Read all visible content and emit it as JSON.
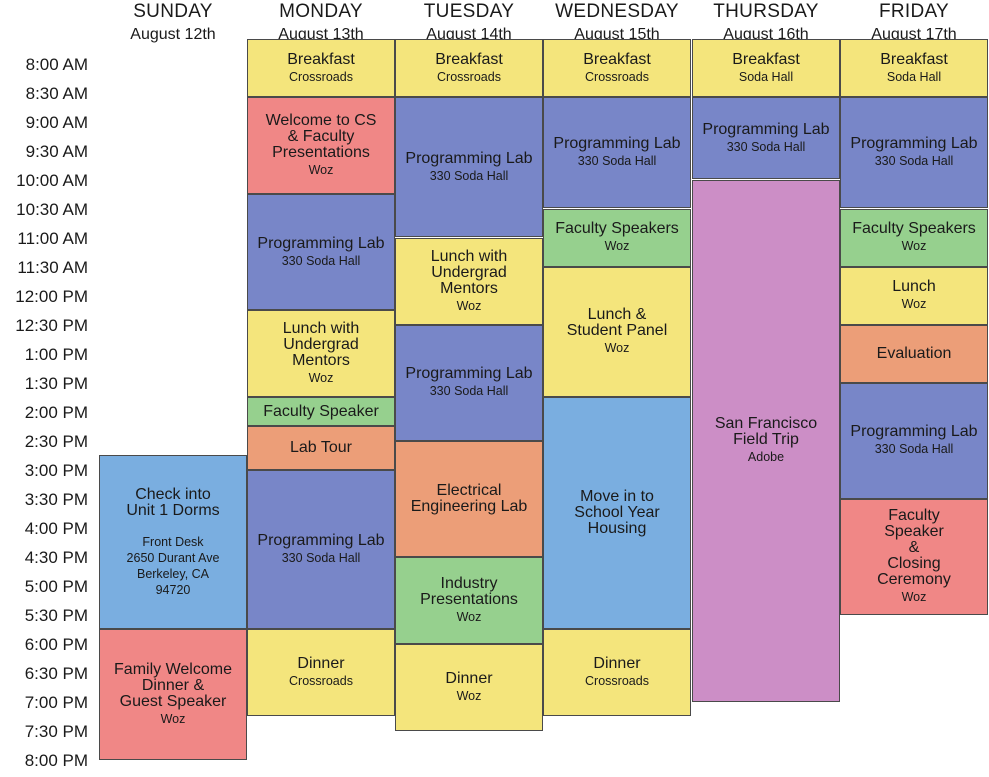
{
  "colors": {
    "meal": "#f4e57c",
    "lab": "#7886c8",
    "speaker": "#96d08e",
    "special": "#f08786",
    "orange": "#ec9e78",
    "housing": "#7aaee0",
    "trip": "#cc8ec6"
  },
  "times": [
    "8:00 AM",
    "8:30 AM",
    "9:00 AM",
    "9:30 AM",
    "10:00 AM",
    "10:30 AM",
    "11:00 AM",
    "11:30 AM",
    "12:00 PM",
    "12:30 PM",
    "1:00 PM",
    "1:30 PM",
    "2:00 PM",
    "2:30 PM",
    "3:00 PM",
    "3:30 PM",
    "4:00 PM",
    "4:30 PM",
    "5:00 PM",
    "5:30 PM",
    "6:00 PM",
    "6:30 PM",
    "7:00 PM",
    "7:30 PM",
    "8:00 PM"
  ],
  "days": [
    {
      "name": "SUNDAY",
      "date": "August 12th"
    },
    {
      "name": "MONDAY",
      "date": "August 13th"
    },
    {
      "name": "TUESDAY",
      "date": "August 14th"
    },
    {
      "name": "WEDNESDAY",
      "date": "August 15th"
    },
    {
      "name": "THURSDAY",
      "date": "August 16th"
    },
    {
      "name": "FRIDAY",
      "date": "August 17th"
    }
  ],
  "events": [
    {
      "day": 0,
      "start": "3:00 PM",
      "end": "6:00 PM",
      "color": "housing",
      "title": "Check into\nUnit 1 Dorms",
      "detail": "Front Desk\n2650 Durant Ave\nBerkeley, CA\n94720"
    },
    {
      "day": 0,
      "start": "6:00 PM",
      "end": "8:15 PM",
      "color": "special",
      "title": "Family Welcome\nDinner &\nGuest Speaker",
      "sub": "Woz"
    },
    {
      "day": 1,
      "start": "7:50 AM",
      "end": "8:50 AM",
      "color": "meal",
      "title": "Breakfast",
      "sub": "Crossroads"
    },
    {
      "day": 1,
      "start": "8:50 AM",
      "end": "10:30 AM",
      "color": "special",
      "title": "Welcome to CS\n& Faculty\nPresentations",
      "sub": "Woz"
    },
    {
      "day": 1,
      "start": "10:30 AM",
      "end": "12:30 PM",
      "color": "lab",
      "title": "Programming Lab",
      "sub": "330 Soda Hall"
    },
    {
      "day": 1,
      "start": "12:30 PM",
      "end": "2:00 PM",
      "color": "meal",
      "title": "Lunch with\nUndergrad\nMentors",
      "sub": "Woz"
    },
    {
      "day": 1,
      "start": "2:00 PM",
      "end": "2:30 PM",
      "color": "speaker",
      "title": "Faculty Speaker"
    },
    {
      "day": 1,
      "start": "2:30 PM",
      "end": "3:15 PM",
      "color": "orange",
      "title": "Lab Tour"
    },
    {
      "day": 1,
      "start": "3:15 PM",
      "end": "6:00 PM",
      "color": "lab",
      "title": "Programming Lab",
      "sub": "330 Soda Hall"
    },
    {
      "day": 1,
      "start": "6:00 PM",
      "end": "7:30 PM",
      "color": "meal",
      "title": "Dinner",
      "sub": "Crossroads"
    },
    {
      "day": 2,
      "start": "7:50 AM",
      "end": "8:50 AM",
      "color": "meal",
      "title": "Breakfast",
      "sub": "Crossroads"
    },
    {
      "day": 2,
      "start": "8:50 AM",
      "end": "11:15 AM",
      "color": "lab",
      "title": "Programming Lab",
      "sub": "330 Soda Hall"
    },
    {
      "day": 2,
      "start": "11:15 AM",
      "end": "12:45 PM",
      "color": "meal",
      "title": "Lunch with\nUndergrad\nMentors",
      "sub": "Woz"
    },
    {
      "day": 2,
      "start": "12:45 PM",
      "end": "2:45 PM",
      "color": "lab",
      "title": "Programming Lab",
      "sub": "330 Soda Hall"
    },
    {
      "day": 2,
      "start": "2:45 PM",
      "end": "4:45 PM",
      "color": "orange",
      "title": "Electrical\nEngineering Lab"
    },
    {
      "day": 2,
      "start": "4:45 PM",
      "end": "6:15 PM",
      "color": "speaker",
      "title": "Industry\nPresentations",
      "sub": "Woz"
    },
    {
      "day": 2,
      "start": "6:15 PM",
      "end": "7:45 PM",
      "color": "meal",
      "title": "Dinner",
      "sub": "Woz"
    },
    {
      "day": 3,
      "start": "7:50 AM",
      "end": "8:50 AM",
      "color": "meal",
      "title": "Breakfast",
      "sub": "Crossroads"
    },
    {
      "day": 3,
      "start": "8:50 AM",
      "end": "10:45 AM",
      "color": "lab",
      "title": "Programming Lab",
      "sub": "330 Soda Hall"
    },
    {
      "day": 3,
      "start": "10:45 AM",
      "end": "11:45 AM",
      "color": "speaker",
      "title": "Faculty Speakers",
      "sub": "Woz"
    },
    {
      "day": 3,
      "start": "11:45 AM",
      "end": "2:00 PM",
      "color": "meal",
      "title": "Lunch &\nStudent Panel",
      "sub": "Woz"
    },
    {
      "day": 3,
      "start": "2:00 PM",
      "end": "6:00 PM",
      "color": "housing",
      "title": "Move in to\nSchool Year\nHousing"
    },
    {
      "day": 3,
      "start": "6:00 PM",
      "end": "7:30 PM",
      "color": "meal",
      "title": "Dinner",
      "sub": "Crossroads"
    },
    {
      "day": 4,
      "start": "7:50 AM",
      "end": "8:50 AM",
      "color": "meal",
      "title": "Breakfast",
      "sub": "Soda Hall"
    },
    {
      "day": 4,
      "start": "8:50 AM",
      "end": "10:15 AM",
      "color": "lab",
      "title": "Programming Lab",
      "sub": "330 Soda Hall"
    },
    {
      "day": 4,
      "start": "10:15 AM",
      "end": "7:15 PM",
      "color": "trip",
      "title": "San Francisco\nField Trip",
      "sub": "Adobe"
    },
    {
      "day": 5,
      "start": "7:50 AM",
      "end": "8:50 AM",
      "color": "meal",
      "title": "Breakfast",
      "sub": "Soda Hall"
    },
    {
      "day": 5,
      "start": "8:50 AM",
      "end": "10:45 AM",
      "color": "lab",
      "title": "Programming Lab",
      "sub": "330 Soda Hall"
    },
    {
      "day": 5,
      "start": "10:45 AM",
      "end": "11:45 AM",
      "color": "speaker",
      "title": "Faculty Speakers",
      "sub": "Woz"
    },
    {
      "day": 5,
      "start": "11:45 AM",
      "end": "12:45 PM",
      "color": "meal",
      "title": "Lunch",
      "sub": "Woz"
    },
    {
      "day": 5,
      "start": "12:45 PM",
      "end": "1:45 PM",
      "color": "orange",
      "title": "Evaluation"
    },
    {
      "day": 5,
      "start": "1:45 PM",
      "end": "3:45 PM",
      "color": "lab",
      "title": "Programming Lab",
      "sub": "330 Soda Hall"
    },
    {
      "day": 5,
      "start": "3:45 PM",
      "end": "5:45 PM",
      "color": "special",
      "title": "Faculty\nSpeaker\n&\nClosing\nCeremony",
      "sub": "Woz"
    }
  ]
}
